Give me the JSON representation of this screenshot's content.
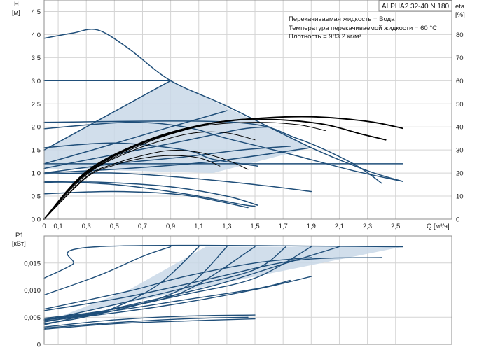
{
  "chart_data": [
    {
      "type": "line",
      "model": "ALPHA2 32-40 N 180",
      "info": [
        "Перекачиваемая жидкость = Вода",
        "Температура перекачиваемой жидкости = 60 °C",
        "Плотность = 983.2 кг/м³"
      ],
      "ylabel": "H",
      "yunit": "[м]",
      "y2label": "eta",
      "y2unit": "[%]",
      "xlabel": "Q [м³/ч]",
      "xlim": [
        0,
        2.9
      ],
      "ylim": [
        0,
        4.75
      ],
      "y2lim": [
        0,
        95
      ],
      "x_ticks": [
        "0",
        "0,1",
        "0,3",
        "0,5",
        "0,7",
        "0,9",
        "1,1",
        "1,3",
        "1,5",
        "1,7",
        "1,9",
        "2,1",
        "2,3",
        "2,5"
      ],
      "y_ticks": [
        "0.0",
        "0.5",
        "1.0",
        "1.5",
        "2.0",
        "2.5",
        "3.0",
        "3.5",
        "4.0",
        "4.5"
      ],
      "y2_ticks": [
        "0",
        "10",
        "20",
        "30",
        "40",
        "50",
        "60",
        "70",
        "80"
      ],
      "grid": true,
      "area": [
        [
          0,
          1.5
        ],
        [
          0.9,
          3.0
        ],
        [
          1.9,
          1.55
        ],
        [
          1.2,
          1.0
        ],
        [
          0,
          1.1
        ]
      ],
      "series": [
        {
          "values": [
            [
              0,
              3.92
            ],
            [
              0.2,
              4.03
            ],
            [
              0.38,
              4.1
            ],
            [
              0.6,
              3.7
            ],
            [
              0.9,
              3.0
            ],
            [
              1.3,
              2.45
            ],
            [
              1.9,
              1.55
            ],
            [
              2.3,
              1.05
            ],
            [
              2.55,
              0.82
            ]
          ],
          "color": "#1f4e79"
        },
        {
          "values": [
            [
              0,
              1.5
            ],
            [
              0.9,
              3.0
            ]
          ],
          "color": "#1f4e79"
        },
        {
          "values": [
            [
              0,
              3.0
            ],
            [
              0.9,
              3.0
            ]
          ],
          "color": "#1f4e79"
        },
        {
          "values": [
            [
              0,
              2.1
            ],
            [
              1.35,
              2.1
            ],
            [
              1.8,
              1.75
            ],
            [
              2.2,
              1.2
            ],
            [
              2.4,
              0.78
            ]
          ],
          "color": "#1f4e79"
        },
        {
          "values": [
            [
              0,
              1.2
            ],
            [
              2.55,
              1.2
            ]
          ],
          "color": "#1f4e79"
        },
        {
          "values": [
            [
              0,
              1.2
            ],
            [
              0.4,
              1.55
            ],
            [
              0.9,
              2.0
            ],
            [
              1.3,
              2.35
            ]
          ],
          "color": "#1f4e79"
        },
        {
          "values": [
            [
              0,
              1.1
            ],
            [
              0.5,
              1.4
            ],
            [
              1.0,
              1.7
            ],
            [
              1.4,
              1.95
            ],
            [
              1.6,
              2.0
            ]
          ],
          "color": "#1f4e79"
        },
        {
          "values": [
            [
              0,
              1.0
            ],
            [
              0.5,
              1.2
            ],
            [
              1.0,
              1.35
            ],
            [
              1.4,
              1.5
            ],
            [
              1.75,
              1.58
            ]
          ],
          "color": "#1f4e79"
        },
        {
          "values": [
            [
              0,
              1.0
            ],
            [
              0.6,
              1.1
            ],
            [
              1.2,
              1.25
            ],
            [
              1.9,
              1.55
            ]
          ],
          "color": "#1f4e79"
        },
        {
          "values": [
            [
              0,
              1.96
            ],
            [
              0.6,
              2.1
            ],
            [
              1.0,
              2.0
            ],
            [
              1.3,
              1.75
            ],
            [
              1.7,
              1.45
            ],
            [
              2.2,
              1.05
            ],
            [
              2.55,
              0.82
            ]
          ],
          "color": "#1f4e79"
        },
        {
          "values": [
            [
              0,
              1.55
            ],
            [
              0.5,
              1.65
            ],
            [
              1.0,
              1.5
            ],
            [
              1.2,
              1.3
            ],
            [
              1.52,
              1.15
            ]
          ],
          "color": "#1f4e79"
        },
        {
          "values": [
            [
              0,
              0.98
            ],
            [
              0.5,
              1.0
            ],
            [
              1.0,
              0.9
            ],
            [
              1.5,
              0.75
            ],
            [
              1.9,
              0.6
            ]
          ],
          "color": "#1f4e79"
        },
        {
          "values": [
            [
              0,
              0.8
            ],
            [
              0.4,
              0.8
            ],
            [
              0.9,
              0.7
            ],
            [
              1.3,
              0.5
            ],
            [
              1.52,
              0.3
            ]
          ],
          "color": "#1f4e79"
        },
        {
          "values": [
            [
              0,
              0.82
            ],
            [
              0.5,
              0.75
            ],
            [
              1.0,
              0.55
            ],
            [
              1.4,
              0.32
            ],
            [
              1.5,
              0.28
            ]
          ],
          "color": "#1f4e79"
        },
        {
          "values": [
            [
              0,
              0.55
            ],
            [
              0.5,
              0.6
            ],
            [
              1.0,
              0.52
            ],
            [
              1.45,
              0.25
            ]
          ],
          "color": "#1f4e79"
        },
        {
          "values": [
            [
              0,
              0
            ],
            [
              0.3,
              1.03
            ],
            [
              0.7,
              1.67
            ],
            [
              1.1,
              2.03
            ],
            [
              1.5,
              2.18
            ],
            [
              1.9,
              2.22
            ],
            [
              2.3,
              2.12
            ],
            [
              2.55,
              1.97
            ]
          ],
          "color": "#000000",
          "eta": true
        },
        {
          "values": [
            [
              0,
              0
            ],
            [
              0.3,
              1.0
            ],
            [
              0.7,
              1.65
            ],
            [
              1.1,
              2.02
            ],
            [
              1.4,
              2.16
            ],
            [
              1.7,
              2.15
            ],
            [
              2.0,
              2.05
            ],
            [
              2.25,
              1.85
            ],
            [
              2.43,
              1.72
            ]
          ],
          "color": "#000000",
          "eta": true
        },
        {
          "values": [
            [
              0,
              0
            ],
            [
              0.3,
              0.98
            ],
            [
              0.7,
              1.62
            ],
            [
              1.0,
              1.93
            ],
            [
              1.2,
              2.05
            ],
            [
              1.5,
              2.1
            ],
            [
              1.8,
              2.05
            ],
            [
              2.0,
              1.92
            ]
          ],
          "color": "#000000",
          "eta": true
        },
        {
          "values": [
            [
              0,
              0
            ],
            [
              0.3,
              0.96
            ],
            [
              0.6,
              1.45
            ],
            [
              0.9,
              1.76
            ],
            [
              1.1,
              1.88
            ],
            [
              1.3,
              1.87
            ],
            [
              1.5,
              1.72
            ]
          ],
          "color": "#000000",
          "eta": true
        },
        {
          "values": [
            [
              0,
              0
            ],
            [
              0.3,
              0.92
            ],
            [
              0.5,
              1.2
            ],
            [
              0.7,
              1.38
            ],
            [
              0.9,
              1.49
            ],
            [
              1.1,
              1.45
            ],
            [
              1.3,
              1.28
            ],
            [
              1.45,
              1.08
            ]
          ],
          "color": "#000000",
          "eta": true
        },
        {
          "values": [
            [
              0,
              0
            ],
            [
              0.3,
              0.9
            ],
            [
              0.5,
              1.17
            ],
            [
              0.7,
              1.32
            ],
            [
              0.9,
              1.38
            ],
            [
              1.1,
              1.33
            ],
            [
              1.25,
              1.15
            ]
          ],
          "color": "#000000",
          "eta": true
        }
      ]
    },
    {
      "type": "line",
      "ylabel": "P1",
      "yunit": "[кВт]",
      "xlim": [
        0,
        2.9
      ],
      "ylim": [
        0,
        0.02
      ],
      "y_ticks": [
        "0",
        "0,005",
        "0,010",
        "0,015"
      ],
      "grid": true,
      "area": [
        [
          0,
          0.004
        ],
        [
          0.6,
          0.01
        ],
        [
          1.15,
          0.018
        ],
        [
          2.55,
          0.018
        ],
        [
          1.5,
          0.0125
        ],
        [
          0,
          0.0045
        ]
      ],
      "series": [
        {
          "values": [
            [
              0,
              0.0122
            ],
            [
              0.2,
              0.0147
            ],
            [
              0.38,
              0.018
            ],
            [
              2.55,
              0.018
            ]
          ],
          "color": "#1f4e79"
        },
        {
          "values": [
            [
              0,
              0.0091
            ],
            [
              0.4,
              0.0128
            ],
            [
              0.7,
              0.0162
            ],
            [
              0.9,
              0.018
            ]
          ],
          "color": "#1f4e79"
        },
        {
          "values": [
            [
              0,
              0.0038
            ],
            [
              0.4,
              0.0058
            ],
            [
              0.8,
              0.0108
            ],
            [
              1.1,
              0.018
            ]
          ],
          "color": "#1f4e79"
        },
        {
          "values": [
            [
              0,
              0.0045
            ],
            [
              0.5,
              0.0062
            ],
            [
              1.0,
              0.0105
            ],
            [
              1.3,
              0.018
            ]
          ],
          "color": "#1f4e79"
        },
        {
          "values": [
            [
              0,
              0.0048
            ],
            [
              0.5,
              0.0065
            ],
            [
              1.0,
              0.0098
            ],
            [
              1.5,
              0.018
            ]
          ],
          "color": "#1f4e79"
        },
        {
          "values": [
            [
              0,
              0.0044
            ],
            [
              0.5,
              0.0073
            ],
            [
              1.0,
              0.0104
            ],
            [
              1.5,
              0.0138
            ],
            [
              1.72,
              0.018
            ]
          ],
          "color": "#1f4e79"
        },
        {
          "values": [
            [
              0,
              0.0041
            ],
            [
              0.5,
              0.0065
            ],
            [
              1.0,
              0.0092
            ],
            [
              1.5,
              0.0122
            ],
            [
              1.9,
              0.018
            ]
          ],
          "color": "#1f4e79"
        },
        {
          "values": [
            [
              0,
              0.0036
            ],
            [
              0.6,
              0.0072
            ],
            [
              1.2,
              0.0108
            ],
            [
              1.7,
              0.0148
            ],
            [
              2.1,
              0.018
            ]
          ],
          "color": "#1f4e79"
        },
        {
          "values": [
            [
              0,
              0.0062
            ],
            [
              0.6,
              0.0088
            ],
            [
              1.2,
              0.0122
            ],
            [
              1.8,
              0.0155
            ],
            [
              2.4,
              0.016
            ]
          ],
          "color": "#1f4e79"
        },
        {
          "values": [
            [
              0,
              0.0065
            ],
            [
              0.6,
              0.0098
            ],
            [
              1.0,
              0.0125
            ],
            [
              1.5,
              0.015
            ],
            [
              1.9,
              0.016
            ]
          ],
          "color": "#1f4e79"
        },
        {
          "values": [
            [
              0,
              0.0046
            ],
            [
              0.5,
              0.0062
            ],
            [
              1.0,
              0.0082
            ],
            [
              1.52,
              0.0103
            ],
            [
              1.75,
              0.0118
            ]
          ],
          "color": "#1f4e79"
        },
        {
          "values": [
            [
              0,
              0.0043
            ],
            [
              0.5,
              0.0058
            ],
            [
              1.0,
              0.0077
            ],
            [
              1.52,
              0.0102
            ],
            [
              1.9,
              0.0125
            ]
          ],
          "color": "#1f4e79"
        },
        {
          "values": [
            [
              0,
              0.0032
            ],
            [
              0.5,
              0.0045
            ],
            [
              1.0,
              0.0052
            ],
            [
              1.5,
              0.0054
            ]
          ],
          "color": "#1f4e79"
        },
        {
          "values": [
            [
              0,
              0.003
            ],
            [
              0.5,
              0.004
            ],
            [
              1.0,
              0.0047
            ],
            [
              1.45,
              0.005
            ]
          ],
          "color": "#1f4e79"
        },
        {
          "values": [
            [
              0,
              0.0028
            ],
            [
              0.5,
              0.0038
            ],
            [
              1.0,
              0.0043
            ],
            [
              1.5,
              0.0047
            ]
          ],
          "color": "#1f4e79"
        }
      ]
    }
  ]
}
